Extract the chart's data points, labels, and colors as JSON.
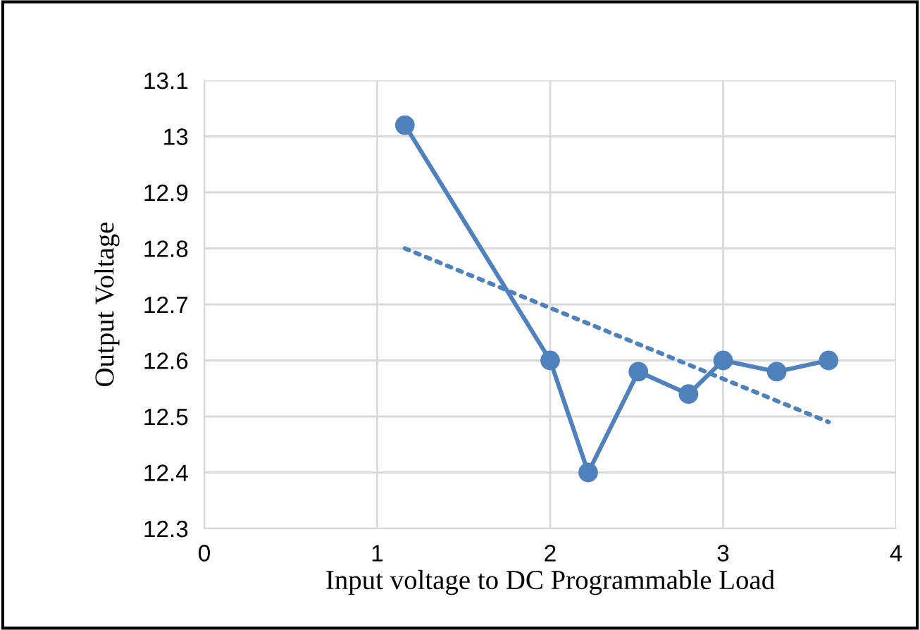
{
  "chart_data": {
    "type": "line",
    "xlabel": "Input voltage to DC Programmable Load",
    "ylabel": "Output Voltage",
    "xlim": [
      0,
      4
    ],
    "xticks": [
      0,
      1,
      2,
      3,
      4
    ],
    "ylim": [
      12.3,
      13.1
    ],
    "yticks": [
      12.3,
      12.4,
      12.5,
      12.6,
      12.7,
      12.8,
      12.9,
      13,
      13.1
    ],
    "grid": true,
    "series": [
      {
        "color": "#4f81bd",
        "marker": "circle",
        "line_style": "solid",
        "x": [
          1.16,
          2.0,
          2.22,
          2.51,
          2.8,
          3.0,
          3.31,
          3.61
        ],
        "values": [
          13.02,
          12.6,
          12.4,
          12.58,
          12.54,
          12.6,
          12.58,
          12.6
        ]
      },
      {
        "color": "#4f81bd",
        "marker": "none",
        "line_style": "dotted",
        "x": [
          1.16,
          3.61
        ],
        "values": [
          12.8,
          12.49
        ]
      }
    ]
  }
}
